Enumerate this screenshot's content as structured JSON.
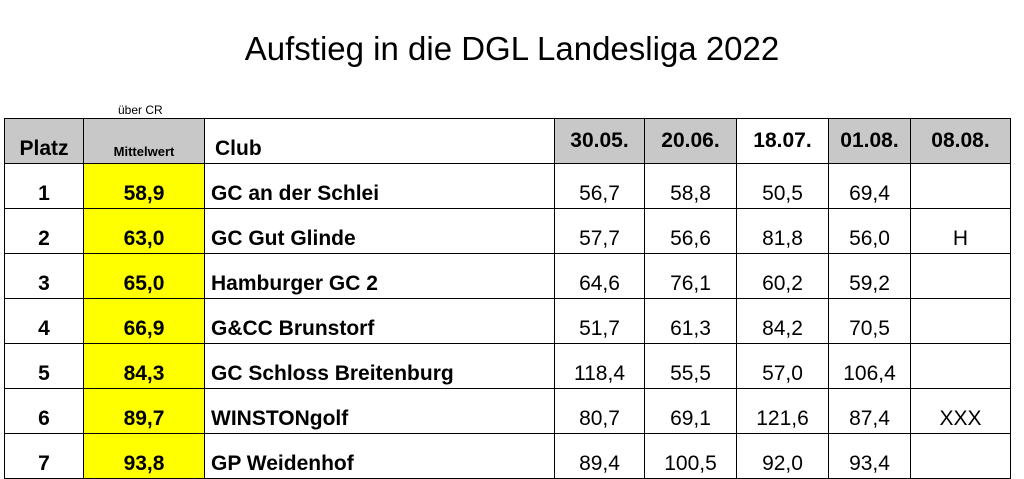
{
  "title": "Aufstieg in die DGL Landesliga 2022",
  "subnote": "über CR",
  "headers": {
    "platz": "Platz",
    "mittelwert": "Mittelwert",
    "club": "Club",
    "dates": [
      "30.05.",
      "20.06.",
      "18.07.",
      "01.08.",
      "08.08."
    ]
  },
  "rows": [
    {
      "platz": "1",
      "mittelwert": "58,9",
      "club": "GC an der Schlei",
      "scores": [
        "56,7",
        "58,8",
        "50,5",
        "69,4",
        ""
      ]
    },
    {
      "platz": "2",
      "mittelwert": "63,0",
      "club": "GC Gut Glinde",
      "scores": [
        "57,7",
        "56,6",
        "81,8",
        "56,0",
        "H"
      ]
    },
    {
      "platz": "3",
      "mittelwert": "65,0",
      "club": "Hamburger GC 2",
      "scores": [
        "64,6",
        "76,1",
        "60,2",
        "59,2",
        ""
      ]
    },
    {
      "platz": "4",
      "mittelwert": "66,9",
      "club": "G&CC Brunstorf",
      "scores": [
        "51,7",
        "61,3",
        "84,2",
        "70,5",
        ""
      ]
    },
    {
      "platz": "5",
      "mittelwert": "84,3",
      "club": "GC Schloss Breitenburg",
      "scores": [
        "118,4",
        "55,5",
        "57,0",
        "106,4",
        ""
      ]
    },
    {
      "platz": "6",
      "mittelwert": "89,7",
      "club": "WINSTONgolf",
      "scores": [
        "80,7",
        "69,1",
        "121,6",
        "87,4",
        "XXX"
      ]
    },
    {
      "platz": "7",
      "mittelwert": "93,8",
      "club": "GP Weidenhof",
      "scores": [
        "89,4",
        "100,5",
        "92,0",
        "93,4",
        ""
      ]
    }
  ],
  "colors": {
    "header_grey": "#c8c8c8",
    "highlight_yellow": "#ffff00"
  }
}
